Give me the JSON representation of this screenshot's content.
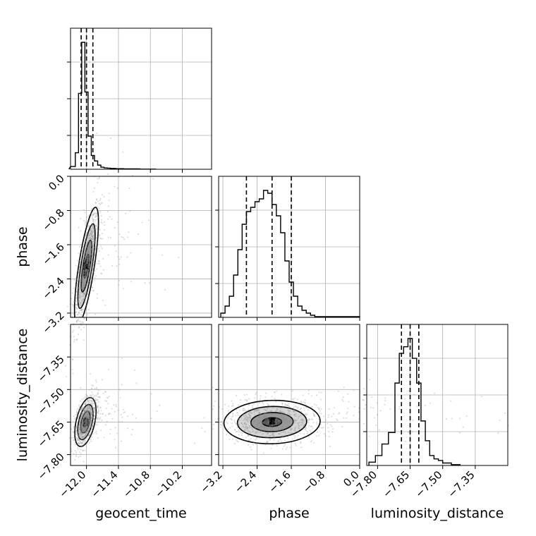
{
  "chart_data": {
    "type": "corner",
    "parameters": [
      "geocent_time",
      "phase",
      "luminosity_distance"
    ],
    "axis_labels": {
      "geocent_time": "geocent_time",
      "phase": "phase",
      "luminosity_distance": "luminosity_distance"
    },
    "ranges": {
      "geocent_time": [
        -12.3,
        -9.65
      ],
      "phase": [
        -3.3,
        0.0
      ],
      "luminosity_distance": [
        -7.85,
        -7.2
      ]
    },
    "ticks": {
      "geocent_time": {
        "values": [
          -12.0,
          -11.4,
          -10.8,
          -10.2
        ],
        "labels": [
          "−12.0",
          "−11.4",
          "−10.8",
          "−10.2"
        ]
      },
      "phase": {
        "values": [
          -3.2,
          -2.4,
          -1.6,
          -0.8,
          0.0
        ],
        "labels": [
          "−3.2",
          "−2.4",
          "−1.6",
          "−0.8",
          "0.0"
        ]
      },
      "luminosity_distance": {
        "values": [
          -7.8,
          -7.65,
          -7.5,
          -7.35
        ],
        "labels": [
          "−7.80",
          "−7.65",
          "−7.50",
          "−7.35"
        ]
      }
    },
    "grid": true,
    "quantiles": {
      "geocent_time": [
        -12.1,
        -12.0,
        -11.88
      ],
      "phase": [
        -2.65,
        -2.05,
        -1.6
      ],
      "luminosity_distance": [
        -7.69,
        -7.65,
        -7.61
      ]
    },
    "histograms": {
      "geocent_time": {
        "edges": [
          -12.33,
          -12.21,
          -12.15,
          -12.09,
          -12.03,
          -11.97,
          -11.91,
          -11.85,
          -11.79,
          -11.73,
          -11.67,
          -11.61,
          -11.55,
          -11.45,
          -11.3,
          -11.0,
          -10.7
        ],
        "heights": [
          0.02,
          0.12,
          0.55,
          0.92,
          0.56,
          0.24,
          0.1,
          0.06,
          0.03,
          0.015,
          0.01,
          0.008,
          0.006,
          0.004,
          0.003,
          0.001
        ]
      },
      "phase": {
        "edges": [
          -3.25,
          -3.15,
          -3.05,
          -2.95,
          -2.85,
          -2.75,
          -2.65,
          -2.55,
          -2.45,
          -2.35,
          -2.25,
          -2.15,
          -2.05,
          -1.95,
          -1.85,
          -1.75,
          -1.65,
          -1.55,
          -1.45,
          -1.35,
          -1.25,
          -1.15,
          -1.05,
          0.0
        ],
        "heights": [
          0.03,
          0.08,
          0.15,
          0.3,
          0.48,
          0.66,
          0.75,
          0.78,
          0.82,
          0.84,
          0.9,
          0.88,
          0.8,
          0.72,
          0.6,
          0.4,
          0.25,
          0.15,
          0.08,
          0.05,
          0.03,
          0.015,
          0.005
        ]
      },
      "luminosity_distance": {
        "edges": [
          -7.84,
          -7.81,
          -7.78,
          -7.75,
          -7.72,
          -7.7,
          -7.68,
          -7.66,
          -7.64,
          -7.62,
          -7.6,
          -7.58,
          -7.56,
          -7.54,
          -7.52,
          -7.5,
          -7.46,
          -7.42
        ],
        "heights": [
          0.02,
          0.06,
          0.13,
          0.2,
          0.5,
          0.68,
          0.72,
          0.77,
          0.65,
          0.5,
          0.27,
          0.15,
          0.06,
          0.04,
          0.03,
          0.015,
          0.005
        ]
      }
    },
    "panels_2d": [
      {
        "x": "geocent_time",
        "y": "phase",
        "center": [
          -12.0,
          -2.1
        ],
        "spread": [
          0.09,
          0.55
        ],
        "correlation": 0.75,
        "peak": [
          -12.01,
          -2.1
        ]
      },
      {
        "x": "geocent_time",
        "y": "luminosity_distance",
        "center": [
          -12.02,
          -7.65
        ],
        "spread": [
          0.08,
          0.045
        ],
        "correlation": 0.45,
        "peak": [
          -12.01,
          -7.65
        ]
      },
      {
        "x": "phase",
        "y": "luminosity_distance",
        "center": [
          -2.05,
          -7.65
        ],
        "spread": [
          0.45,
          0.04
        ],
        "correlation": 0.05,
        "peak": [
          -2.05,
          -7.645
        ]
      }
    ]
  }
}
